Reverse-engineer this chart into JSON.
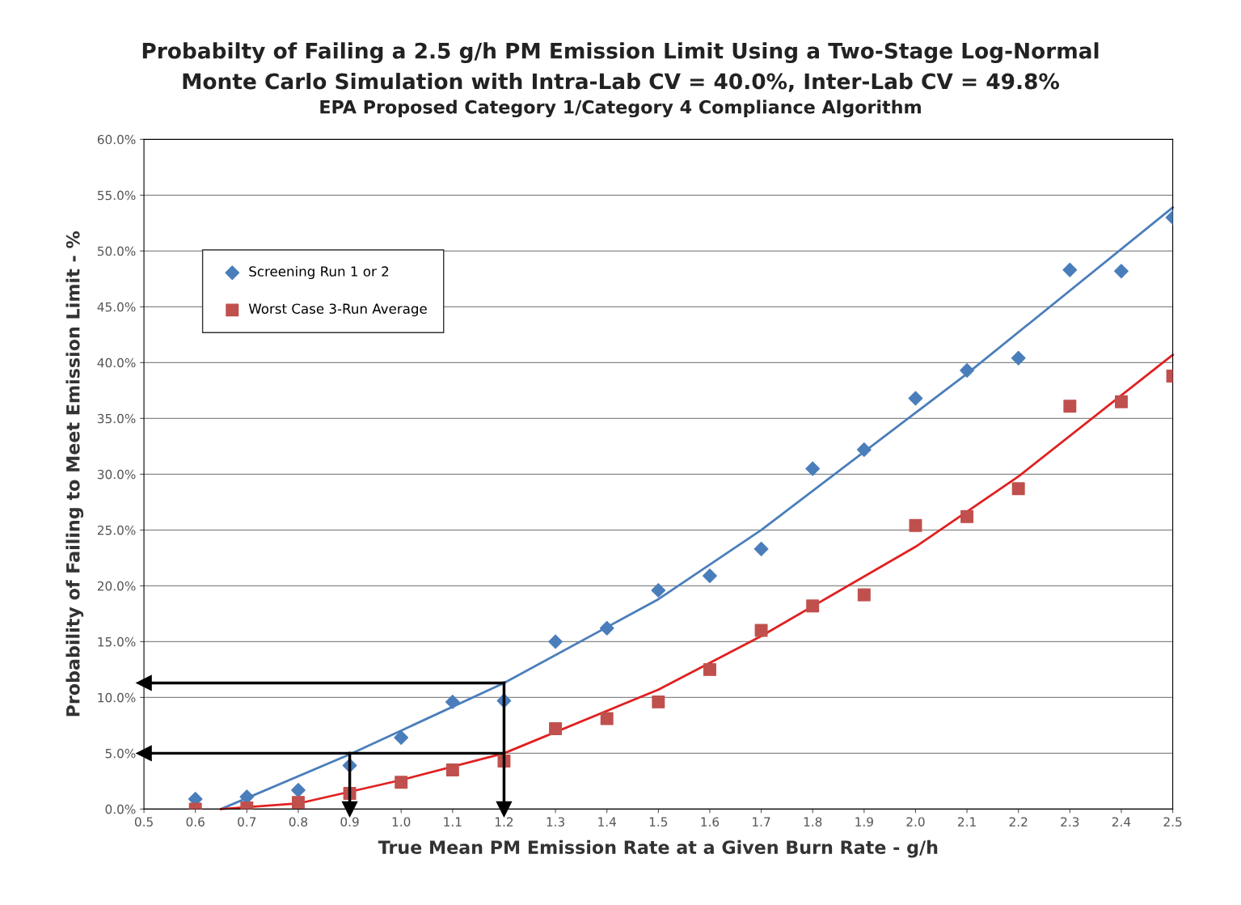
{
  "chart_data": {
    "type": "scatter",
    "title": "Probabilty of Failing a 2.5 g/h PM Emission Limit Using a Two-Stage Log-Normal\nMonte Carlo Simulation with Intra-Lab CV = 40.0%, Inter-Lab CV = 49.8%",
    "subtitle": "EPA Proposed Category 1/Category 4 Compliance Algorithm",
    "xlabel": "True Mean PM Emission Rate at a Given Burn Rate - g/h",
    "ylabel": "Probability of Failing to Meet Emission Limit - %",
    "x": [
      0.6,
      0.7,
      0.8,
      0.9,
      1.0,
      1.1,
      1.2,
      1.3,
      1.4,
      1.5,
      1.6,
      1.7,
      1.8,
      1.9,
      2.0,
      2.1,
      2.2,
      2.3,
      2.4,
      2.5
    ],
    "series": [
      {
        "name": "Screening Run 1 or 2",
        "color": "#4a7ebb",
        "marker": "diamond",
        "values": [
          0.9,
          1.1,
          1.7,
          3.9,
          6.4,
          9.6,
          9.7,
          15.0,
          16.2,
          19.6,
          20.9,
          23.3,
          30.5,
          32.2,
          36.8,
          39.3,
          40.4,
          48.3,
          48.2,
          53.0
        ]
      },
      {
        "name": "Worst Case 3-Run Average",
        "color": "#c0504d",
        "marker": "square",
        "values": [
          0.0,
          0.1,
          0.6,
          1.4,
          2.4,
          3.5,
          4.3,
          7.2,
          8.1,
          9.6,
          12.5,
          16.0,
          18.2,
          19.2,
          25.4,
          26.2,
          28.7,
          36.1,
          36.5,
          38.8
        ]
      },
      {
        "type": "line",
        "color": "#4a7ebb",
        "marker": "none",
        "x": [
          0.65,
          0.9,
          1.2,
          1.5,
          1.7,
          2.0,
          2.1,
          2.5
        ],
        "values": [
          0.0,
          4.9,
          11.3,
          18.8,
          25.0,
          35.5,
          39.0,
          53.9
        ]
      },
      {
        "type": "line",
        "color": "#e02020",
        "marker": "none",
        "x": [
          0.65,
          0.8,
          1.0,
          1.2,
          1.5,
          1.7,
          2.0,
          2.2,
          2.5
        ],
        "values": [
          0.0,
          0.5,
          2.6,
          5.0,
          10.7,
          15.5,
          23.5,
          29.8,
          40.7
        ]
      },
      {
        "type": "line",
        "color": "#000000",
        "marker": "triangle",
        "x": [
          0.5,
          1.2
        ],
        "values": [
          11.3,
          11.3
        ]
      },
      {
        "type": "line",
        "color": "#000000",
        "marker": "triangle",
        "x": [
          1.2,
          1.2
        ],
        "values": [
          0.0,
          11.3
        ]
      },
      {
        "type": "line",
        "color": "#000000",
        "marker": "triangle",
        "x": [
          0.5,
          1.2
        ],
        "values": [
          5.0,
          5.0
        ]
      },
      {
        "type": "line",
        "color": "#000000",
        "marker": "triangle",
        "x": [
          0.9,
          0.9
        ],
        "values": [
          0.0,
          5.0
        ]
      }
    ],
    "xlim": [
      0.5,
      2.5
    ],
    "xticks": [
      0.5,
      0.6,
      0.7,
      0.8,
      0.9,
      {
        "value": 1.0,
        "label": "1.0"
      },
      1.1,
      1.2,
      1.3,
      1.4,
      1.5,
      1.6,
      1.7,
      1.8,
      1.9,
      {
        "value": 2.0,
        "label": "2.0"
      },
      2.1,
      2.2,
      2.3,
      2.4,
      2.5
    ],
    "ylim": [
      0,
      60
    ],
    "yticks": [
      {
        "value": 0,
        "label": "0.0%"
      },
      {
        "value": 5,
        "label": "5.0%"
      },
      {
        "value": 10,
        "label": "10.0%"
      },
      {
        "value": 15,
        "label": "15.0%"
      },
      {
        "value": 20,
        "label": "20.0%"
      },
      {
        "value": 25,
        "label": "25.0%"
      },
      {
        "value": 30,
        "label": "30.0%"
      },
      {
        "value": 35,
        "label": "35.0%"
      },
      {
        "value": 40,
        "label": "40.0%"
      },
      {
        "value": 45,
        "label": "45.0%"
      },
      {
        "value": 50,
        "label": "50.0%"
      },
      {
        "value": 55,
        "label": "55.0%"
      },
      {
        "value": 60,
        "label": "60.0%"
      }
    ],
    "grid": "y",
    "legend": "top left"
  }
}
